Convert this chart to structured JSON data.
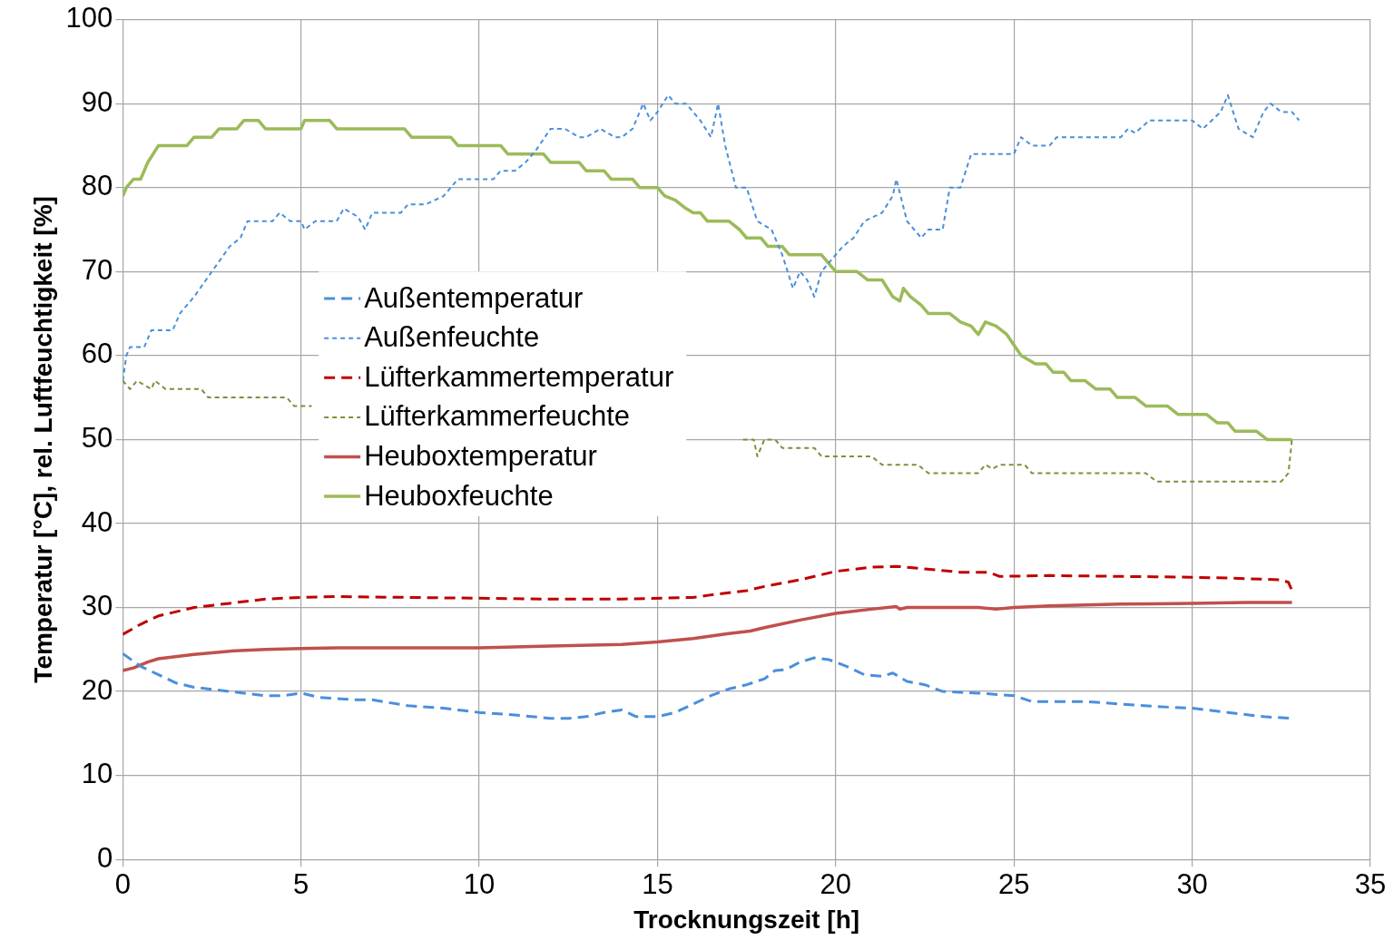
{
  "chart_data": {
    "type": "line",
    "xlabel": "Trocknungszeit [h]",
    "ylabel": "Temperatur [°C], rel. Luftfeuchtigkeit [%]",
    "xlim": [
      0,
      35
    ],
    "xticks": [
      0,
      5,
      10,
      15,
      20,
      25,
      30,
      35
    ],
    "ylim": [
      0,
      100
    ],
    "yticks": [
      0,
      10,
      20,
      30,
      40,
      50,
      60,
      70,
      80,
      90,
      100
    ],
    "grid": true,
    "legend": "left",
    "marker": "none",
    "series": [
      {
        "name": "Außentemperatur",
        "color": "#4a8fdc",
        "line_style": "dashed",
        "x": [
          0,
          0.5,
          1,
          1.5,
          2,
          3,
          4,
          4.5,
          5,
          5.5,
          6.5,
          7,
          8,
          9,
          10,
          11,
          12,
          12.5,
          13,
          13.5,
          14,
          14.4,
          15,
          15.5,
          16,
          16.5,
          17,
          17.5,
          18,
          18.3,
          18.6,
          19,
          19.4,
          19.8,
          20.3,
          20.8,
          21.3,
          21.6,
          22,
          22.5,
          23,
          24,
          25,
          25.5,
          27,
          28,
          29,
          30,
          31,
          32,
          32.8
        ],
        "values": [
          24.5,
          23,
          22,
          21,
          20.5,
          20,
          19.5,
          19.5,
          19.8,
          19.3,
          19,
          19,
          18.3,
          18,
          17.5,
          17.2,
          16.8,
          16.8,
          17,
          17.5,
          17.8,
          17,
          17,
          17.5,
          18.5,
          19.5,
          20.3,
          20.8,
          21.5,
          22.5,
          22.6,
          23.5,
          24,
          23.8,
          23,
          22,
          21.8,
          22.2,
          21.2,
          20.8,
          20,
          19.8,
          19.5,
          18.8,
          18.8,
          18.5,
          18.2,
          18,
          17.5,
          17,
          16.8
        ]
      },
      {
        "name": "Außenfeuchte",
        "color": "#4a8fdc",
        "line_style": "dotted",
        "x": [
          0,
          0.1,
          0.2,
          0.6,
          0.8,
          1.4,
          1.6,
          2,
          2.5,
          3,
          3.3,
          3.5,
          4.2,
          4.4,
          4.7,
          5,
          5.1,
          5.4,
          6,
          6.2,
          6.6,
          6.8,
          7,
          7.8,
          8,
          8.5,
          9,
          9.4,
          10.4,
          10.6,
          11,
          11.3,
          11.6,
          12,
          12.4,
          12.8,
          13,
          13.4,
          13.8,
          14,
          14.3,
          14.6,
          14.8,
          15,
          15.3,
          15.5,
          15.8,
          16.2,
          16.5,
          16.7,
          16.9,
          17.2,
          17.5,
          17.8,
          18.2,
          18.5,
          18.8,
          19,
          19.2,
          19.4,
          19.6,
          20,
          20.2,
          20.5,
          20.8,
          21.3,
          21.6,
          21.7,
          22,
          22.2,
          22.4,
          22.6,
          23,
          23.2,
          23.5,
          23.8,
          25,
          25.2,
          25.5,
          26,
          26.2,
          28,
          28.2,
          28.4,
          28.8,
          30,
          30.3,
          30.8,
          31,
          31.3,
          31.7,
          32,
          32.2,
          32.5,
          32.8,
          33
        ],
        "values": [
          57,
          60,
          61,
          61,
          63,
          63,
          65,
          67,
          70,
          73,
          74,
          76,
          76,
          77,
          76,
          76,
          75,
          76,
          76,
          77.5,
          76.5,
          75,
          77,
          77,
          78,
          78,
          79,
          81,
          81,
          82,
          82,
          83,
          84.5,
          87,
          87,
          86,
          86,
          87,
          86,
          86,
          87,
          90,
          88,
          89,
          91,
          90,
          90,
          88,
          86,
          90,
          85,
          80,
          80,
          76,
          75,
          72,
          68,
          70,
          69,
          67,
          70,
          72,
          73,
          74,
          76,
          77,
          79,
          81,
          76,
          75,
          74,
          75,
          75,
          80,
          80,
          84,
          84,
          86,
          85,
          85,
          86,
          86,
          87,
          86.5,
          88,
          88,
          87,
          89,
          91,
          87,
          86,
          89,
          90,
          89,
          89,
          88
        ]
      },
      {
        "name": "Lüfterkammertemperatur",
        "color": "#c00000",
        "line_style": "dashed",
        "x": [
          0,
          0.5,
          1,
          2,
          3,
          4,
          5,
          6,
          8,
          10,
          12,
          14,
          16,
          16.5,
          17.5,
          18,
          19,
          20,
          21,
          21.7,
          22.5,
          23.5,
          24.3,
          24.6,
          26,
          28,
          30,
          31,
          32.5,
          32.7,
          32.8
        ],
        "values": [
          26.8,
          28,
          29,
          30,
          30.5,
          31,
          31.2,
          31.3,
          31.2,
          31.1,
          31,
          31,
          31.2,
          31.5,
          32,
          32.5,
          33.3,
          34.3,
          34.8,
          34.9,
          34.6,
          34.2,
          34.2,
          33.7,
          33.8,
          33.7,
          33.6,
          33.5,
          33.3,
          33,
          32
        ]
      },
      {
        "name": "Lüfterkammerfeuchte",
        "color": "#77933c",
        "line_style": "dotted",
        "x": [
          0,
          0.2,
          0.4,
          0.6,
          0.8,
          0.9,
          1.2,
          2.2,
          2.4,
          4.6,
          4.8,
          5.3,
          5.5,
          17.4,
          17.7,
          17.8,
          18,
          18.3,
          18.5,
          19.4,
          19.6,
          21,
          21.3,
          22.3,
          22.6,
          24,
          24.2,
          24.4,
          24.6,
          25.3,
          25.5,
          28.7,
          29,
          32.5,
          32.7,
          32.8
        ],
        "values": [
          57,
          56,
          57,
          56.5,
          56,
          57,
          56,
          56,
          55,
          55,
          54,
          54,
          null,
          50,
          50,
          48,
          50,
          50,
          49,
          49,
          48,
          48,
          47,
          47,
          46,
          46,
          47,
          46.5,
          47,
          47,
          46,
          46,
          45,
          45,
          46,
          50
        ]
      },
      {
        "name": "Heuboxtemperatur",
        "color": "#c0504d",
        "line_style": "solid",
        "x": [
          0,
          0.3,
          0.7,
          1,
          2,
          3,
          4,
          5,
          6,
          8,
          10,
          12,
          14,
          15,
          16,
          17,
          17.6,
          18,
          19,
          20,
          21,
          21.7,
          21.8,
          22,
          24,
          24.5,
          25,
          26,
          28,
          30,
          31.5,
          32.8
        ],
        "values": [
          22.5,
          22.8,
          23.5,
          23.9,
          24.4,
          24.8,
          25,
          25.1,
          25.2,
          25.2,
          25.2,
          25.4,
          25.6,
          25.9,
          26.3,
          26.9,
          27.2,
          27.6,
          28.5,
          29.3,
          29.8,
          30.1,
          29.8,
          30,
          30,
          29.8,
          30,
          30.2,
          30.4,
          30.5,
          30.6,
          30.6
        ]
      },
      {
        "name": "Heuboxfeuchte",
        "color": "#9bbb59",
        "line_style": "solid",
        "x": [
          0,
          0.1,
          0.3,
          0.5,
          0.7,
          1,
          1.8,
          2,
          2.5,
          2.7,
          3.2,
          3.4,
          3.8,
          4,
          5,
          5.1,
          5.8,
          6,
          7.9,
          8.1,
          9.2,
          9.4,
          10.6,
          10.8,
          11.8,
          12,
          12.8,
          13,
          13.5,
          13.7,
          14.3,
          14.5,
          15,
          15.2,
          15.5,
          15.8,
          16,
          16.2,
          16.4,
          17,
          17.3,
          17.5,
          17.9,
          18.1,
          18.5,
          18.7,
          19.6,
          20,
          20.6,
          20.9,
          21.3,
          21.6,
          21.8,
          21.9,
          22.1,
          22.4,
          22.6,
          23.2,
          23.5,
          23.8,
          24,
          24.2,
          24.5,
          24.8,
          25.2,
          25.6,
          25.9,
          26.1,
          26.4,
          26.6,
          27,
          27.3,
          27.7,
          27.9,
          28.4,
          28.7,
          29.3,
          29.6,
          30.4,
          30.7,
          31,
          31.2,
          31.8,
          32.1,
          32.8
        ],
        "values": [
          79,
          80,
          81,
          81,
          83,
          85,
          85,
          86,
          86,
          87,
          87,
          88,
          88,
          87,
          87,
          88,
          88,
          87,
          87,
          86,
          86,
          85,
          85,
          84,
          84,
          83,
          83,
          82,
          82,
          81,
          81,
          80,
          80,
          79,
          78.5,
          77.5,
          77,
          77,
          76,
          76,
          75,
          74,
          74,
          73,
          73,
          72,
          72,
          70,
          70,
          69,
          69,
          67,
          66.5,
          68,
          67,
          66,
          65,
          65,
          64,
          63.5,
          62.5,
          64,
          63.5,
          62.5,
          60,
          59,
          59,
          58,
          58,
          57,
          57,
          56,
          56,
          55,
          55,
          54,
          54,
          53,
          53,
          52,
          52,
          51,
          51,
          50,
          50
        ]
      }
    ]
  }
}
